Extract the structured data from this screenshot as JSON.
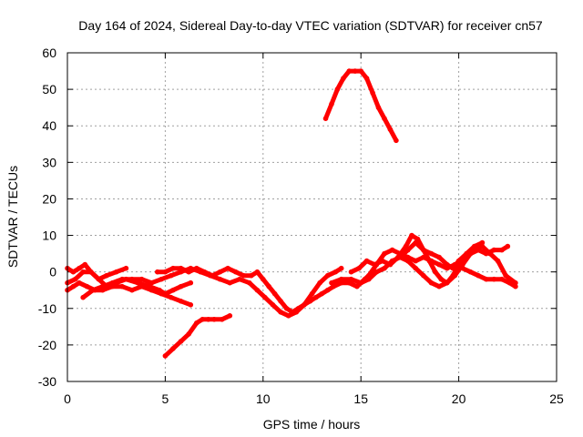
{
  "chart_data": {
    "type": "scatter",
    "title": "Day 164 of 2024, Sidereal Day-to-day VTEC variation (SDTVAR) for receiver cn57",
    "xlabel": "GPS time / hours",
    "ylabel": "SDTVAR / TECUs",
    "xlim": [
      0,
      25
    ],
    "ylim": [
      -30,
      60
    ],
    "xticks": [
      0,
      5,
      10,
      15,
      20,
      25
    ],
    "yticks": [
      -30,
      -20,
      -10,
      0,
      10,
      20,
      30,
      40,
      50,
      60
    ],
    "grid": true,
    "legend": "none",
    "series_color": "#ff0000",
    "series": [
      {
        "name": "arc-1",
        "x": [
          0.0,
          0.4,
          0.8,
          1.2,
          1.6,
          2.0,
          2.5,
          3.0,
          3.6,
          4.2,
          4.7,
          5.0,
          5.4,
          5.8,
          6.3
        ],
        "y": [
          -3,
          -2,
          0,
          0,
          -2,
          -4,
          -3,
          -2,
          -3,
          -4,
          -5,
          -6,
          -5,
          -4,
          -3
        ]
      },
      {
        "name": "arc-2",
        "x": [
          0.0,
          0.3,
          0.6,
          0.9,
          1.2,
          1.6,
          2.0,
          2.5,
          3.0
        ],
        "y": [
          1,
          0,
          1,
          2,
          0,
          -2,
          -1,
          0,
          1
        ]
      },
      {
        "name": "arc-3",
        "x": [
          0.0,
          0.3,
          0.6,
          1.0,
          1.4,
          1.8,
          2.3,
          2.8,
          3.3,
          3.8,
          4.3,
          4.8,
          5.3,
          5.8,
          6.3
        ],
        "y": [
          -5,
          -4,
          -3,
          -4,
          -5,
          -5,
          -4,
          -4,
          -5,
          -4,
          -5,
          -6,
          -7,
          -8,
          -9
        ]
      },
      {
        "name": "arc-4",
        "x": [
          0.8,
          1.3,
          1.8,
          2.3,
          2.8,
          3.3,
          3.8,
          4.3,
          4.8,
          5.3,
          5.8,
          6.3,
          6.8,
          7.3,
          7.8,
          8.3,
          8.8,
          9.3,
          9.7,
          10.1,
          10.5,
          10.9,
          11.3,
          11.7,
          12.1,
          12.5,
          12.9,
          13.3,
          13.7,
          14.0
        ],
        "y": [
          -7,
          -5,
          -4,
          -3,
          -2,
          -2,
          -2,
          -3,
          -2,
          -1,
          0,
          1,
          0,
          -1,
          -2,
          -3,
          -2,
          -3,
          -5,
          -7,
          -9,
          -11,
          -12,
          -11,
          -9,
          -6,
          -3,
          -1,
          0,
          1
        ]
      },
      {
        "name": "arc-5",
        "x": [
          4.6,
          5.0,
          5.4,
          5.8,
          6.2,
          6.6,
          7.0,
          7.4,
          7.8,
          8.2,
          8.6,
          9.0,
          9.4,
          9.7,
          10.0,
          10.3,
          10.6,
          10.9,
          11.2,
          11.5,
          11.8,
          12.1,
          12.4,
          12.7,
          13.0,
          13.3,
          13.6,
          14.0,
          14.4,
          14.8,
          15.2,
          15.6
        ],
        "y": [
          0,
          0,
          1,
          1,
          0,
          1,
          0,
          -1,
          0,
          1,
          0,
          -1,
          -1,
          0,
          -2,
          -4,
          -6,
          -8,
          -10,
          -11,
          -10,
          -9,
          -8,
          -7,
          -6,
          -5,
          -4,
          -3,
          -3,
          -4,
          -2,
          0
        ]
      },
      {
        "name": "arc-6",
        "x": [
          5.0,
          5.4,
          5.8,
          6.2,
          6.6,
          6.9,
          7.2,
          7.5,
          7.9,
          8.3
        ],
        "y": [
          -23,
          -21,
          -19,
          -17,
          -14,
          -13,
          -13,
          -13,
          -13,
          -12
        ]
      },
      {
        "name": "arc-7",
        "x": [
          13.2,
          13.5,
          13.8,
          14.1,
          14.4,
          14.7,
          15.0,
          15.3,
          15.6,
          15.9,
          16.2,
          16.5,
          16.8
        ],
        "y": [
          42,
          46,
          50,
          53,
          55,
          55,
          55,
          53,
          49,
          45,
          42,
          39,
          36
        ]
      },
      {
        "name": "arc-8",
        "x": [
          13.5,
          14.0,
          14.5,
          15.0,
          15.4,
          15.8,
          16.2,
          16.6,
          17.0,
          17.4,
          17.8,
          18.2,
          18.6,
          19.0,
          19.4,
          19.8,
          20.2,
          20.6,
          21.0,
          21.4,
          21.8,
          22.2,
          22.6,
          22.9
        ],
        "y": [
          -3,
          -2,
          -2,
          -3,
          -1,
          2,
          5,
          6,
          5,
          4,
          3,
          4,
          3,
          2,
          1,
          2,
          1,
          0,
          -1,
          -2,
          -2,
          -2,
          -3,
          -4
        ]
      },
      {
        "name": "arc-9",
        "x": [
          14.5,
          14.9,
          15.3,
          15.7,
          16.1,
          16.5,
          16.9,
          17.3,
          17.6,
          17.9,
          18.2,
          18.5,
          18.8,
          19.1,
          19.4,
          19.7,
          20.0,
          20.4,
          20.8,
          21.2,
          21.6,
          22.0,
          22.4,
          22.9
        ],
        "y": [
          0,
          1,
          3,
          2,
          3,
          2,
          4,
          7,
          10,
          9,
          6,
          3,
          0,
          -2,
          -3,
          -1,
          2,
          5,
          6,
          7,
          5,
          3,
          -1,
          -3
        ]
      },
      {
        "name": "arc-10",
        "x": [
          15.0,
          15.4,
          15.8,
          16.2,
          16.6,
          17.0,
          17.4,
          17.8,
          18.2,
          18.6,
          19.0,
          19.4,
          19.8,
          20.2,
          20.6,
          21.0,
          21.4,
          21.8,
          22.2,
          22.5
        ],
        "y": [
          -3,
          -2,
          0,
          1,
          3,
          4,
          3,
          1,
          -1,
          -3,
          -4,
          -3,
          -1,
          2,
          5,
          6,
          5,
          6,
          6,
          7
        ]
      },
      {
        "name": "arc-11",
        "x": [
          17.0,
          17.4,
          17.8,
          18.2,
          18.6,
          19.0,
          19.4,
          19.7,
          20.0,
          20.4,
          20.8,
          21.2
        ],
        "y": [
          4,
          6,
          8,
          6,
          5,
          4,
          2,
          1,
          3,
          5,
          7,
          8
        ]
      }
    ]
  }
}
